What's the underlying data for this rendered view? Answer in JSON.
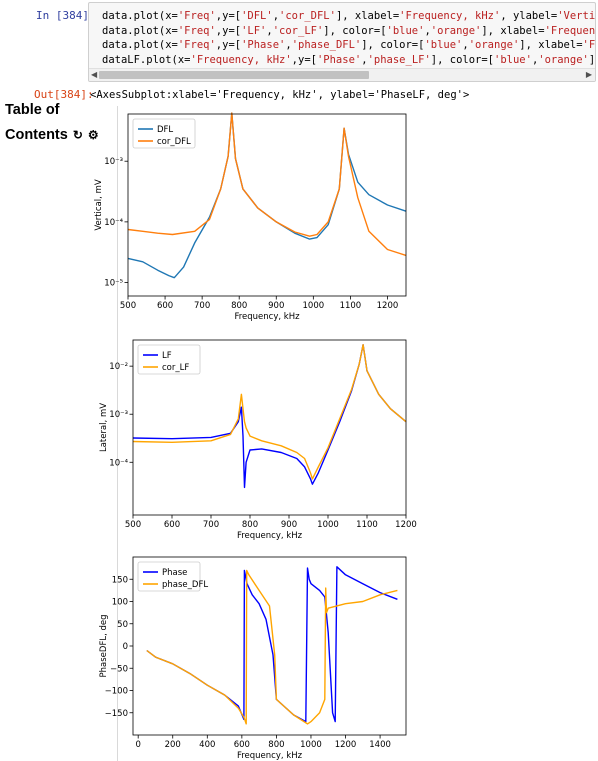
{
  "cell": {
    "in_prompt": "In [384]:",
    "out_prompt": "Out[384]:",
    "code_lines": [
      {
        "pre": "data.plot(x=",
        "s1": "'Freq'",
        "m1": ",y=[",
        "s2": "'DFL'",
        "m2": ",",
        "s3": "'cor_DFL'",
        "m3": "], xlabel=",
        "s4": "'Frequency, kHz'",
        "m4": ", ylabel=",
        "s5": "'Vertic"
      },
      {
        "pre": "data.plot(x=",
        "s1": "'Freq'",
        "m1": ",y=[",
        "s2": "'LF'",
        "m2": ",",
        "s3": "'cor_LF'",
        "m3": "], color=[",
        "s4": "'blue'",
        "m4": ",",
        "s5": "'orange'",
        "m5": "], xlabel=",
        "s6": "'Frequenc"
      },
      {
        "pre": "data.plot(x=",
        "s1": "'Freq'",
        "m1": ",y=[",
        "s2": "'Phase'",
        "m2": ",",
        "s3": "'phase_DFL'",
        "m3": "], color=[",
        "s4": "'blue'",
        "m4": ",",
        "s5": "'orange'",
        "m5": "], xlabel=",
        "s6": "'Fr"
      },
      {
        "pre": "dataLF.plot(x=",
        "s1": "'Frequency, kHz'",
        "m1": ",y=[",
        "s2": "'Phase'",
        "m2": ",",
        "s3": "'phase_LF'",
        "m3": "], color=[",
        "s4": "'blue'",
        "m4": ",",
        "s5": "'orange'",
        "m5": "],"
      }
    ],
    "output_text": "<AxesSubplot:xlabel='Frequency, kHz', ylabel='PhaseLF, deg'>"
  },
  "toc": {
    "line1": "Table of",
    "line2": "Contents",
    "refresh_icon": "refresh-icon",
    "gear_icon": "gear-icon"
  },
  "colors": {
    "blue_series": "#1f77b4",
    "orange_series": "#ff7f0e",
    "pure_blue": "#0000ff",
    "orange": "#ffa500",
    "string": "#ba2121",
    "keyword_green": "#008000"
  },
  "chart_data": [
    {
      "type": "line",
      "xlabel": "Frequency, kHz",
      "ylabel": "Vertical, mV",
      "xlim": [
        500,
        1250
      ],
      "ylim": [
        6e-06,
        0.006
      ],
      "yscale": "log",
      "xticks": [
        "500",
        "600",
        "700",
        "800",
        "900",
        "1000",
        "1100",
        "1200"
      ],
      "yticks": [
        "10⁻⁵",
        "10⁻⁴",
        "10⁻³"
      ],
      "legend_position": "top-left",
      "series": [
        {
          "name": "DFL",
          "color": "#1f77b4",
          "x": [
            500,
            540,
            580,
            610,
            625,
            650,
            680,
            720,
            750,
            770,
            780,
            790,
            810,
            850,
            900,
            950,
            990,
            1010,
            1040,
            1070,
            1083,
            1095,
            1120,
            1150,
            1200,
            1250
          ],
          "y": [
            2.5e-05,
            2.2e-05,
            1.6e-05,
            1.3e-05,
            1.2e-05,
            1.8e-05,
            4.5e-05,
            0.00012,
            0.00035,
            0.0012,
            0.0062,
            0.0011,
            0.00035,
            0.00017,
            0.0001,
            6.5e-05,
            5.2e-05,
            5.5e-05,
            9e-05,
            0.00035,
            0.0035,
            0.0013,
            0.00045,
            0.00028,
            0.00019,
            0.00015
          ]
        },
        {
          "name": "cor_DFL",
          "color": "#ff7f0e",
          "x": [
            500,
            540,
            580,
            620,
            680,
            720,
            750,
            770,
            780,
            790,
            810,
            850,
            900,
            950,
            990,
            1010,
            1040,
            1070,
            1083,
            1095,
            1120,
            1150,
            1200,
            1250
          ],
          "y": [
            7.5e-05,
            7e-05,
            6.5e-05,
            6.2e-05,
            7e-05,
            0.00011,
            0.00035,
            0.0012,
            0.0062,
            0.0011,
            0.00035,
            0.00017,
            0.0001,
            6.8e-05,
            5.8e-05,
            6.2e-05,
            0.0001,
            0.00035,
            0.0035,
            0.0012,
            0.00025,
            7e-05,
            3.5e-05,
            2.8e-05
          ]
        }
      ]
    },
    {
      "type": "line",
      "xlabel": "Frequency, kHz",
      "ylabel": "Lateral, mV",
      "xlim": [
        500,
        1200
      ],
      "ylim": [
        8e-06,
        0.035
      ],
      "yscale": "log",
      "xticks": [
        "500",
        "600",
        "700",
        "800",
        "900",
        "1000",
        "1100",
        "1200"
      ],
      "yticks": [
        "10⁻⁴",
        "10⁻³",
        "10⁻²"
      ],
      "legend_position": "top-left",
      "series": [
        {
          "name": "LF",
          "color": "#0000ff",
          "x": [
            500,
            600,
            700,
            750,
            770,
            778,
            782,
            786,
            790,
            800,
            830,
            880,
            920,
            940,
            955,
            960,
            975,
            1000,
            1030,
            1060,
            1080,
            1090,
            1100,
            1130,
            1160,
            1200
          ],
          "y": [
            0.00032,
            0.00031,
            0.00033,
            0.0004,
            0.0007,
            0.0014,
            0.00035,
            3e-05,
            0.0001,
            0.00018,
            0.00019,
            0.00016,
            0.00012,
            8e-05,
            4.5e-05,
            3.5e-05,
            6e-05,
            0.00018,
            0.0007,
            0.003,
            0.011,
            0.028,
            0.008,
            0.0026,
            0.0013,
            0.0007
          ]
        },
        {
          "name": "cor_LF",
          "color": "#ffa500",
          "x": [
            500,
            600,
            700,
            750,
            770,
            778,
            782,
            786,
            790,
            800,
            830,
            880,
            920,
            940,
            955,
            960,
            975,
            1000,
            1030,
            1060,
            1080,
            1090,
            1100,
            1130,
            1160,
            1200
          ],
          "y": [
            0.00027,
            0.00026,
            0.00028,
            0.00038,
            0.0008,
            0.0026,
            0.0013,
            0.0007,
            0.00052,
            0.00035,
            0.00028,
            0.00022,
            0.00016,
            0.00012,
            6e-05,
            4.5e-05,
            8e-05,
            0.0002,
            0.0008,
            0.0032,
            0.011,
            0.028,
            0.008,
            0.0026,
            0.0013,
            0.0007
          ]
        }
      ]
    },
    {
      "type": "line",
      "xlabel": "Frequency, kHz",
      "ylabel": "PhaseDFL, deg",
      "xlim": [
        -30,
        1550
      ],
      "ylim": [
        -200,
        200
      ],
      "xticks": [
        "0",
        "200",
        "400",
        "600",
        "800",
        "1000",
        "1200",
        "1400"
      ],
      "yticks": [
        "150",
        "100",
        "50",
        "0",
        "−50",
        "−100",
        "−150"
      ],
      "legend_position": "top-left",
      "series": [
        {
          "name": "Phase",
          "color": "#0000ff",
          "x": [
            50,
            100,
            200,
            300,
            400,
            500,
            580,
            612,
            615,
            630,
            660,
            700,
            740,
            780,
            800,
            900,
            970,
            980,
            990,
            1000,
            1050,
            1080,
            1100,
            1125,
            1140,
            1150,
            1200,
            1300,
            1400,
            1500
          ],
          "y": [
            -10,
            -25,
            -40,
            -62,
            -88,
            -110,
            -135,
            -165,
            170,
            140,
            115,
            95,
            60,
            -20,
            -120,
            -155,
            -170,
            175,
            150,
            140,
            125,
            110,
            30,
            -150,
            -170,
            178,
            160,
            140,
            120,
            105
          ]
        },
        {
          "name": "phase_DFL",
          "color": "#ffa500",
          "x": [
            50,
            100,
            200,
            300,
            400,
            500,
            580,
            612,
            625,
            628,
            640,
            700,
            760,
            790,
            800,
            900,
            980,
            1000,
            1050,
            1080,
            1085,
            1090,
            1100,
            1200,
            1300,
            1400,
            1500
          ],
          "y": [
            -10,
            -25,
            -40,
            -62,
            -88,
            -110,
            -140,
            -160,
            -175,
            170,
            160,
            125,
            90,
            -20,
            -120,
            -155,
            -175,
            -170,
            -150,
            -120,
            130,
            75,
            85,
            95,
            100,
            115,
            125
          ]
        }
      ]
    }
  ]
}
